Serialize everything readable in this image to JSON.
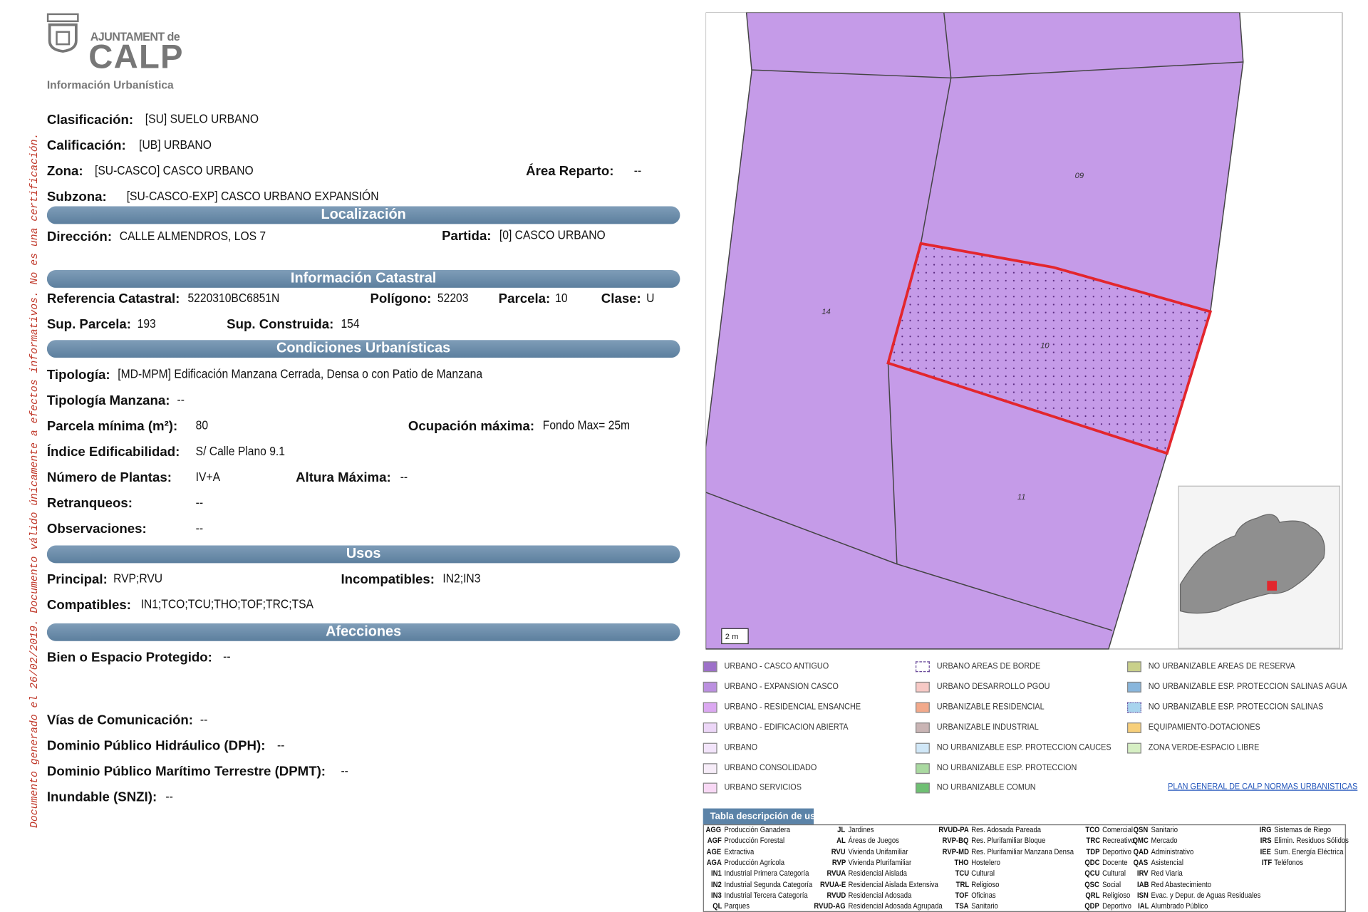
{
  "header": {
    "council": "AJUNTAMENT de",
    "town": "CALP",
    "subtitle": "Información Urbanística"
  },
  "side_note": "Documento generado el 26/02/2019. Documento válido únicamente a efectos informativos. No es una certificación.",
  "sections": [
    "Localización",
    "Información Catastral",
    "Condiciones Urbanísticas",
    "Usos",
    "Afecciones"
  ],
  "fields": [
    {
      "label": "Clasificación:",
      "value": "[SU] SUELO URBANO"
    },
    {
      "label": "Calificación:",
      "value": "[UB] URBANO"
    },
    {
      "label": "Zona:",
      "value": "[SU-CASCO] CASCO URBANO"
    },
    {
      "label": "Área Reparto:",
      "value": "--"
    },
    {
      "label": "Subzona:",
      "value": "[SU-CASCO-EXP] CASCO URBANO EXPANSIÓN"
    },
    {
      "label": "Dirección:",
      "value": "CALLE ALMENDROS, LOS 7"
    },
    {
      "label": "Partida:",
      "value": "[0] CASCO URBANO"
    },
    {
      "label": "Referencia Catastral:",
      "value": "5220310BC6851N"
    },
    {
      "label": "Polígono:",
      "value": "52203"
    },
    {
      "label": "Parcela:",
      "value": "10"
    },
    {
      "label": "Clase:",
      "value": "U"
    },
    {
      "label": "Sup. Parcela:",
      "value": "193"
    },
    {
      "label": "Sup. Construida:",
      "value": "154"
    },
    {
      "label": "Tipología:",
      "value": "[MD-MPM] Edificación Manzana Cerrada, Densa o con Patio de Manzana"
    },
    {
      "label": "Tipología Manzana:",
      "value": "--"
    },
    {
      "label": "Parcela mínima (m²):",
      "value": "80"
    },
    {
      "label": "Ocupación máxima:",
      "value": "Fondo Max= 25m"
    },
    {
      "label": "Índice Edificabilidad:",
      "value": "S/ Calle Plano 9.1"
    },
    {
      "label": "Número de Plantas:",
      "value": "IV+A"
    },
    {
      "label": "Altura Máxima:",
      "value": "--"
    },
    {
      "label": "Retranqueos:",
      "value": "--"
    },
    {
      "label": "Observaciones:",
      "value": "--"
    },
    {
      "label": "Principal:",
      "value": "RVP;RVU"
    },
    {
      "label": "Incompatibles:",
      "value": "IN2;IN3"
    },
    {
      "label": "Compatibles:",
      "value": "IN1;TCO;TCU;THO;TOF;TRC;TSA"
    },
    {
      "label": "Bien o Espacio Protegido:",
      "value": "--"
    },
    {
      "label": "Vías de Comunicación:",
      "value": "--"
    },
    {
      "label": "Dominio Público Hidráulico (DPH):",
      "value": "--"
    },
    {
      "label": "Dominio Público Marítimo Terrestre (DPMT):",
      "value": "--"
    },
    {
      "label": "Inundable (SNZI):",
      "value": "--"
    }
  ],
  "map": {
    "parcel_labels": [
      "09",
      "14",
      "10",
      "11"
    ],
    "scale": "2 m"
  },
  "legend": {
    "items": [
      {
        "label": "URBANO - CASCO ANTIGUO",
        "color": "#9d70c9"
      },
      {
        "label": "URBANO - EXPANSION CASCO",
        "color": "#bb8fe0"
      },
      {
        "label": "URBANO - RESIDENCIAL ENSANCHE",
        "color": "#dba8f1"
      },
      {
        "label": "URBANO - EDIFICACION ABIERTA",
        "color": "#ecd6f7"
      },
      {
        "label": "URBANO",
        "color": "#f2e4fa"
      },
      {
        "label": "URBANO CONSOLIDADO",
        "color": "#f6ecf8"
      },
      {
        "label": "URBANO SERVICIOS",
        "color": "#f8d8f5"
      },
      {
        "label": "URBANO AREAS DE BORDE",
        "color": "#ffffff",
        "pattern": "dashed"
      },
      {
        "label": "URBANO DESARROLLO PGOU",
        "color": "#f7c9c5"
      },
      {
        "label": "URBANIZABLE RESIDENCIAL",
        "color": "#f2a98b"
      },
      {
        "label": "URBANIZABLE INDUSTRIAL",
        "color": "#c9b4b4"
      },
      {
        "label": "NO URBANIZABLE ESP. PROTECCION CAUCES",
        "color": "#d0e7f7"
      },
      {
        "label": "NO URBANIZABLE ESP. PROTECCION",
        "color": "#a9d9a0"
      },
      {
        "label": "NO URBANIZABLE COMUN",
        "color": "#6fbf73"
      },
      {
        "label": "NO URBANIZABLE AREAS DE RESERVA",
        "color": "#c9d08a"
      },
      {
        "label": "NO URBANIZABLE ESP. PROTECCION SALINAS AGUA",
        "color": "#88b6dc"
      },
      {
        "label": "NO URBANIZABLE ESP. PROTECCION SALINAS",
        "color": "#a8d4ee",
        "pattern": "dotted"
      },
      {
        "label": "EQUIPAMIENTO-DOTACIONES",
        "color": "#f7cf7a"
      },
      {
        "label": "ZONA VERDE-ESPACIO LIBRE",
        "color": "#d6efc3"
      }
    ],
    "link": "PLAN GENERAL DE CALP NORMAS URBANISTICAS"
  },
  "uses_table": {
    "title": "Tabla descripción de usos",
    "columns": [
      [
        {
          "code": "AGG",
          "description": "Producción Ganadera"
        },
        {
          "code": "AGF",
          "description": "Producción Forestal"
        },
        {
          "code": "AGE",
          "description": "Extractiva"
        },
        {
          "code": "AGA",
          "description": "Producción Agrícola"
        },
        {
          "code": "IN1",
          "description": "Industrial Primera Categoría"
        },
        {
          "code": "IN2",
          "description": "Industrial Segunda Categoría"
        },
        {
          "code": "IN3",
          "description": "Industrial Tercera Categoría"
        },
        {
          "code": "QL",
          "description": "Parques"
        }
      ],
      [
        {
          "code": "JL",
          "description": "Jardines"
        },
        {
          "code": "AL",
          "description": "Áreas de Juegos"
        },
        {
          "code": "RVU",
          "description": "Vivienda Unifamiliar"
        },
        {
          "code": "RVP",
          "description": "Vivienda Plurifamiliar"
        },
        {
          "code": "RVUA",
          "description": "Residencial Aislada"
        },
        {
          "code": "RVUA-E",
          "description": "Residencial Aislada Extensiva"
        },
        {
          "code": "RVUD",
          "description": "Residencial Adosada"
        },
        {
          "code": "RVUD-AG",
          "description": "Residencial Adosada Agrupada"
        }
      ],
      [
        {
          "code": "RVUD-PA",
          "description": "Res. Adosada Pareada"
        },
        {
          "code": "RVP-BQ",
          "description": "Res. Plurifamiliar Bloque"
        },
        {
          "code": "RVP-MD",
          "description": "Res. Plurifamiliar Manzana Densa"
        },
        {
          "code": "THO",
          "description": "Hostelero"
        },
        {
          "code": "TCU",
          "description": "Cultural"
        },
        {
          "code": "TRL",
          "description": "Religioso"
        },
        {
          "code": "TOF",
          "description": "Oficinas"
        },
        {
          "code": "TSA",
          "description": "Sanitario"
        }
      ],
      [
        {
          "code": "TCO",
          "description": "Comercial"
        },
        {
          "code": "TRC",
          "description": "Recreativo"
        },
        {
          "code": "TDP",
          "description": "Deportivo"
        },
        {
          "code": "QDC",
          "description": "Docente"
        },
        {
          "code": "QCU",
          "description": "Cultural"
        },
        {
          "code": "QSC",
          "description": "Social"
        },
        {
          "code": "QRL",
          "description": "Religioso"
        },
        {
          "code": "QDP",
          "description": "Deportivo"
        }
      ],
      [
        {
          "code": "QSN",
          "description": "Sanitario"
        },
        {
          "code": "QMC",
          "description": "Mercado"
        },
        {
          "code": "QAD",
          "description": "Administrativo"
        },
        {
          "code": "QAS",
          "description": "Asistencial"
        },
        {
          "code": "IRV",
          "description": "Red Viaria"
        },
        {
          "code": "IAB",
          "description": "Red Abastecimiento"
        },
        {
          "code": "ISN",
          "description": "Evac. y Depur. de Aguas Residuales"
        },
        {
          "code": "IAL",
          "description": "Alumbrado Público"
        }
      ],
      [
        {
          "code": "IRG",
          "description": "Sistemas de Riego"
        },
        {
          "code": "IRS",
          "description": "Elimin. Residuos Sólidos"
        },
        {
          "code": "IEE",
          "description": "Sum. Energía Eléctrica"
        },
        {
          "code": "ITF",
          "description": "Teléfonos"
        }
      ]
    ]
  }
}
